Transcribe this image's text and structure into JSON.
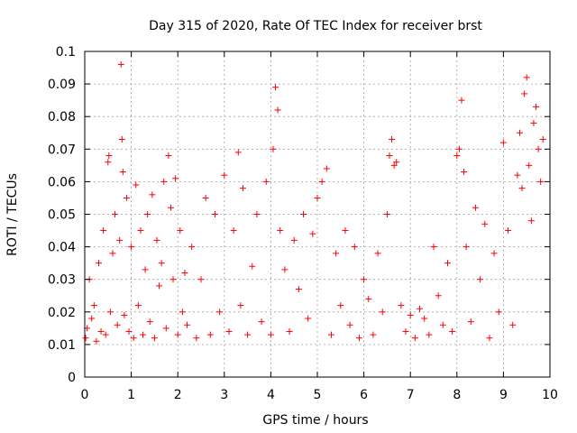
{
  "chart_data": {
    "type": "scatter",
    "title": "Day 315 of 2020, Rate Of TEC Index for receiver brst",
    "xlabel": "GPS time / hours",
    "ylabel": "ROTI / TECUs",
    "xlim": [
      0,
      10
    ],
    "ylim": [
      0,
      0.1
    ],
    "xticks": [
      "0",
      "1",
      "2",
      "3",
      "4",
      "5",
      "6",
      "7",
      "8",
      "9",
      "10"
    ],
    "yticks": [
      "0",
      "0.01",
      "0.02",
      "0.03",
      "0.04",
      "0.05",
      "0.06",
      "0.07",
      "0.08",
      "0.09",
      "0.1"
    ],
    "grid": true,
    "marker": "plus",
    "series": [
      {
        "color": "#ff0000",
        "x": [
          0.02,
          0.05,
          0.1,
          0.15,
          0.2,
          0.25,
          0.3,
          0.35,
          0.4,
          0.45,
          0.5,
          0.52,
          0.55,
          0.6,
          0.65,
          0.7,
          0.75,
          0.78,
          0.8,
          0.82,
          0.85,
          0.9,
          0.95,
          1.0,
          1.05,
          1.1,
          1.15,
          1.2,
          1.25,
          1.3,
          1.35,
          1.4,
          1.45,
          1.5,
          1.55,
          1.6,
          1.65,
          1.7,
          1.75,
          1.8,
          1.85,
          1.9,
          1.95,
          2.0,
          2.05,
          2.1,
          2.15,
          2.2,
          2.3,
          2.4,
          2.5,
          2.6,
          2.7,
          2.8,
          2.9,
          3.0,
          3.1,
          3.2,
          3.3,
          3.35,
          3.4,
          3.5,
          3.6,
          3.7,
          3.8,
          3.9,
          4.0,
          4.05,
          4.1,
          4.15,
          4.2,
          4.3,
          4.4,
          4.5,
          4.6,
          4.7,
          4.8,
          4.9,
          5.0,
          5.1,
          5.2,
          5.3,
          5.4,
          5.5,
          5.6,
          5.7,
          5.8,
          5.9,
          6.0,
          6.1,
          6.2,
          6.3,
          6.4,
          6.5,
          6.55,
          6.6,
          6.65,
          6.7,
          6.8,
          6.9,
          7.0,
          7.1,
          7.2,
          7.3,
          7.4,
          7.5,
          7.6,
          7.7,
          7.8,
          7.9,
          8.0,
          8.05,
          8.1,
          8.15,
          8.2,
          8.3,
          8.4,
          8.5,
          8.6,
          8.7,
          8.8,
          8.9,
          9.0,
          9.1,
          9.2,
          9.3,
          9.35,
          9.4,
          9.45,
          9.5,
          9.55,
          9.6,
          9.65,
          9.7,
          9.75,
          9.8,
          9.85
        ],
        "y": [
          0.012,
          0.015,
          0.03,
          0.018,
          0.022,
          0.011,
          0.035,
          0.014,
          0.045,
          0.013,
          0.066,
          0.068,
          0.02,
          0.038,
          0.05,
          0.016,
          0.042,
          0.096,
          0.073,
          0.063,
          0.019,
          0.055,
          0.014,
          0.04,
          0.012,
          0.059,
          0.022,
          0.045,
          0.013,
          0.033,
          0.05,
          0.017,
          0.056,
          0.012,
          0.042,
          0.028,
          0.035,
          0.06,
          0.015,
          0.068,
          0.052,
          0.03,
          0.061,
          0.013,
          0.045,
          0.02,
          0.032,
          0.016,
          0.04,
          0.012,
          0.03,
          0.055,
          0.013,
          0.05,
          0.02,
          0.062,
          0.014,
          0.045,
          0.069,
          0.022,
          0.058,
          0.013,
          0.034,
          0.05,
          0.017,
          0.06,
          0.013,
          0.07,
          0.089,
          0.082,
          0.045,
          0.033,
          0.014,
          0.042,
          0.027,
          0.05,
          0.018,
          0.044,
          0.055,
          0.06,
          0.064,
          0.013,
          0.038,
          0.022,
          0.045,
          0.016,
          0.04,
          0.012,
          0.03,
          0.024,
          0.013,
          0.038,
          0.02,
          0.05,
          0.068,
          0.073,
          0.065,
          0.066,
          0.022,
          0.014,
          0.019,
          0.012,
          0.021,
          0.018,
          0.013,
          0.04,
          0.025,
          0.016,
          0.035,
          0.014,
          0.068,
          0.07,
          0.085,
          0.063,
          0.04,
          0.017,
          0.052,
          0.03,
          0.047,
          0.012,
          0.038,
          0.02,
          0.072,
          0.045,
          0.016,
          0.062,
          0.075,
          0.058,
          0.087,
          0.092,
          0.065,
          0.048,
          0.078,
          0.083,
          0.07,
          0.06,
          0.073
        ]
      }
    ]
  }
}
